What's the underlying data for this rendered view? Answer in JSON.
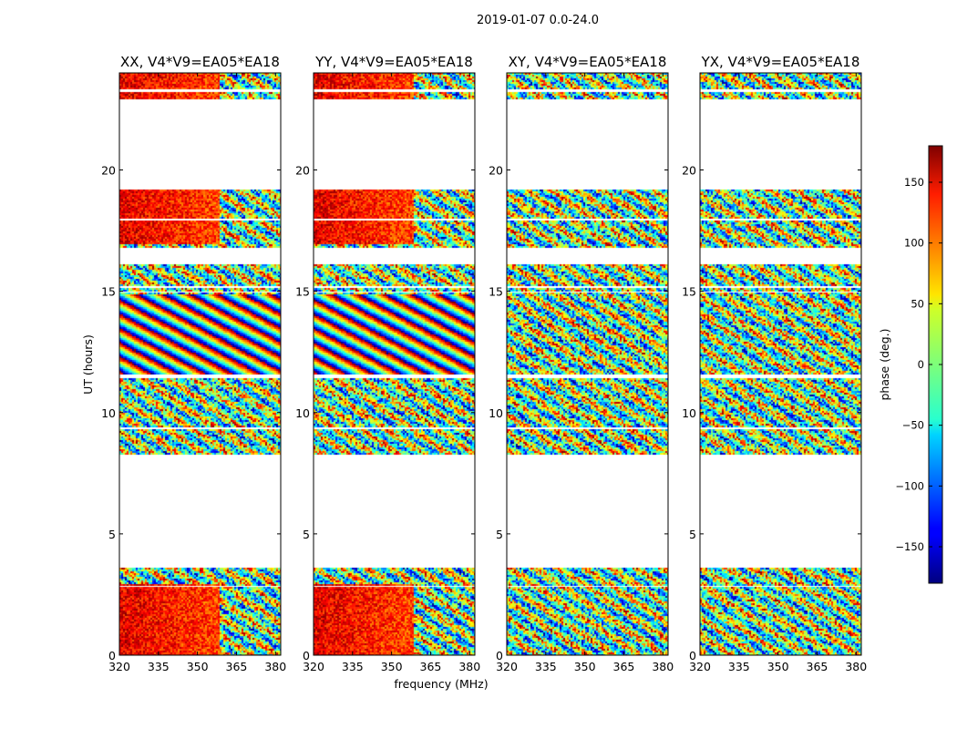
{
  "chart_data": {
    "type": "heatmap",
    "suptitle": "2019-01-07 0.0-24.0",
    "xlabel": "frequency (MHz)",
    "ylabel": "UT (hours)",
    "xlim": [
      320,
      382
    ],
    "ylim": [
      0,
      24
    ],
    "xticks": [
      320,
      335,
      350,
      365,
      380
    ],
    "yticks": [
      0,
      5,
      10,
      15,
      20
    ],
    "panels": [
      {
        "title": "XX, V4*V9=EA05*EA18",
        "coherent_phase": true
      },
      {
        "title": "YY, V4*V9=EA05*EA18",
        "coherent_phase": true
      },
      {
        "title": "XY, V4*V9=EA05*EA18",
        "coherent_phase": false
      },
      {
        "title": "YX, V4*V9=EA05*EA18",
        "coherent_phase": false
      }
    ],
    "data_bands_hours": [
      [
        0.0,
        0.55
      ],
      [
        0.6,
        2.8
      ],
      [
        2.9,
        3.6
      ],
      [
        8.3,
        8.7
      ],
      [
        8.75,
        9.3
      ],
      [
        9.4,
        11.4
      ],
      [
        11.6,
        14.95
      ],
      [
        15.0,
        15.15
      ],
      [
        15.2,
        16.1
      ],
      [
        16.8,
        17.9
      ],
      [
        18.0,
        19.2
      ],
      [
        22.95,
        23.2
      ],
      [
        23.35,
        24.0
      ]
    ],
    "colorbar": {
      "label": "phase (deg.)",
      "range": [
        -180,
        180
      ],
      "ticks": [
        150,
        100,
        50,
        0,
        -50,
        -100,
        -150
      ],
      "tick_labels": [
        "150",
        "100",
        "50",
        "0",
        "−50",
        "−100",
        "−150"
      ],
      "colormap": "jet"
    }
  }
}
